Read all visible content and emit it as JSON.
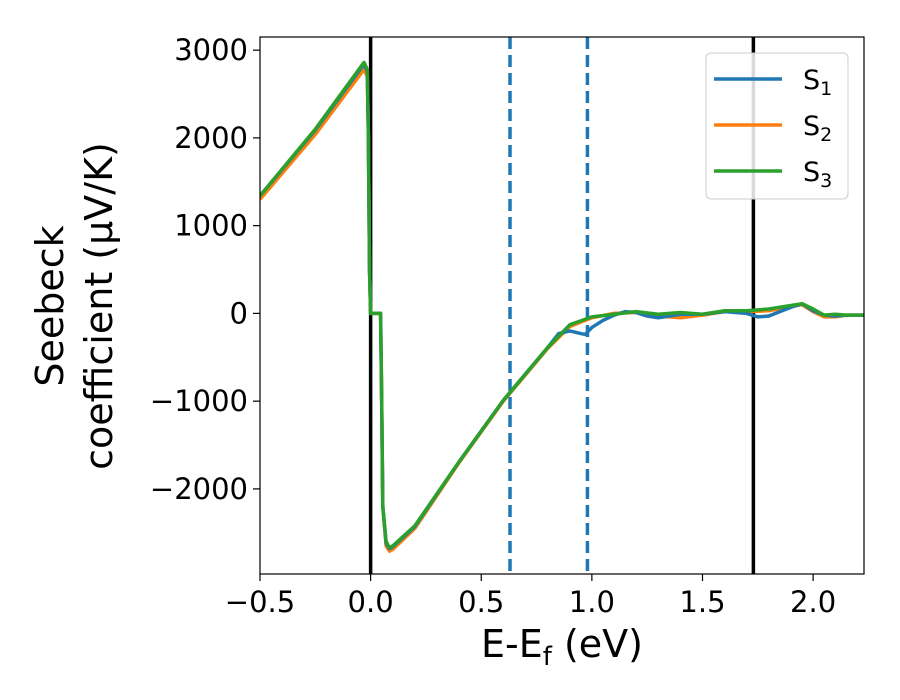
{
  "chart_data": {
    "type": "line",
    "xlabel": {
      "main": "E-E",
      "sub": "f",
      "unit": " (eV)"
    },
    "ylabel": {
      "line1": "Seebeck",
      "line2": "coefficient  (μV/K)"
    },
    "xlim": [
      -0.5,
      2.23
    ],
    "ylim": [
      -2970,
      3150
    ],
    "xticks": [
      -0.5,
      0.0,
      0.5,
      1.0,
      1.5,
      2.0
    ],
    "xtick_labels": [
      "−0.5",
      "0.0",
      "0.5",
      "1.0",
      "1.5",
      "2.0"
    ],
    "yticks": [
      -2000,
      -1000,
      0,
      1000,
      2000,
      3000
    ],
    "ytick_labels": [
      "−2000",
      "−1000",
      "0",
      "1000",
      "2000",
      "3000"
    ],
    "grid": false,
    "legend_position": "top-right",
    "colors": {
      "s1": "#1f77b4",
      "s2": "#ff7f0e",
      "s3": "#2ca02c",
      "vline_solid": "#000000",
      "vline_dashed": "#1f77b4"
    },
    "vlines_solid": [
      0.0,
      1.73
    ],
    "vlines_dashed": [
      0.63,
      0.98
    ],
    "series": [
      {
        "key": "s2",
        "name_main": "S",
        "name_sub": "2",
        "points": [
          [
            -0.5,
            1300
          ],
          [
            -0.25,
            2040
          ],
          [
            -0.03,
            2780
          ],
          [
            -0.015,
            2700
          ],
          [
            -0.01,
            2000
          ],
          [
            -0.005,
            500
          ],
          [
            0.0,
            0
          ],
          [
            0.045,
            0
          ],
          [
            0.05,
            -1000
          ],
          [
            0.055,
            -2200
          ],
          [
            0.07,
            -2650
          ],
          [
            0.085,
            -2710
          ],
          [
            0.1,
            -2690
          ],
          [
            0.2,
            -2450
          ],
          [
            0.4,
            -1700
          ],
          [
            0.6,
            -1000
          ],
          [
            0.8,
            -400
          ],
          [
            0.9,
            -150
          ],
          [
            1.0,
            -50
          ],
          [
            1.1,
            0
          ],
          [
            1.2,
            10
          ],
          [
            1.3,
            -30
          ],
          [
            1.4,
            -50
          ],
          [
            1.5,
            -20
          ],
          [
            1.6,
            20
          ],
          [
            1.7,
            20
          ],
          [
            1.8,
            30
          ],
          [
            1.9,
            80
          ],
          [
            1.95,
            100
          ],
          [
            2.0,
            20
          ],
          [
            2.05,
            -40
          ],
          [
            2.1,
            -40
          ],
          [
            2.15,
            -20
          ],
          [
            2.23,
            -20
          ]
        ]
      },
      {
        "key": "s1",
        "name_main": "S",
        "name_sub": "1",
        "points": [
          [
            -0.5,
            1340
          ],
          [
            -0.25,
            2090
          ],
          [
            -0.03,
            2840
          ],
          [
            -0.015,
            2760
          ],
          [
            -0.01,
            2000
          ],
          [
            -0.005,
            500
          ],
          [
            0.0,
            0
          ],
          [
            0.045,
            0
          ],
          [
            0.05,
            -1000
          ],
          [
            0.055,
            -2200
          ],
          [
            0.07,
            -2620
          ],
          [
            0.085,
            -2680
          ],
          [
            0.1,
            -2660
          ],
          [
            0.2,
            -2430
          ],
          [
            0.4,
            -1690
          ],
          [
            0.6,
            -990
          ],
          [
            0.8,
            -390
          ],
          [
            0.85,
            -230
          ],
          [
            0.9,
            -200
          ],
          [
            0.95,
            -230
          ],
          [
            0.97,
            -240
          ],
          [
            1.0,
            -160
          ],
          [
            1.05,
            -80
          ],
          [
            1.1,
            -20
          ],
          [
            1.15,
            20
          ],
          [
            1.2,
            10
          ],
          [
            1.25,
            -30
          ],
          [
            1.3,
            -50
          ],
          [
            1.35,
            -30
          ],
          [
            1.4,
            -10
          ],
          [
            1.5,
            -10
          ],
          [
            1.6,
            20
          ],
          [
            1.7,
            0
          ],
          [
            1.75,
            -40
          ],
          [
            1.8,
            -30
          ],
          [
            1.85,
            20
          ],
          [
            1.9,
            70
          ],
          [
            1.95,
            110
          ],
          [
            2.0,
            30
          ],
          [
            2.05,
            -20
          ],
          [
            2.1,
            -30
          ],
          [
            2.15,
            -20
          ],
          [
            2.23,
            -20
          ]
        ]
      },
      {
        "key": "s3",
        "name_main": "S",
        "name_sub": "3",
        "points": [
          [
            -0.5,
            1340
          ],
          [
            -0.25,
            2100
          ],
          [
            -0.03,
            2860
          ],
          [
            -0.015,
            2780
          ],
          [
            -0.01,
            2000
          ],
          [
            -0.005,
            500
          ],
          [
            0.0,
            0
          ],
          [
            0.045,
            0
          ],
          [
            0.05,
            -1000
          ],
          [
            0.055,
            -2200
          ],
          [
            0.07,
            -2600
          ],
          [
            0.085,
            -2670
          ],
          [
            0.1,
            -2650
          ],
          [
            0.2,
            -2420
          ],
          [
            0.4,
            -1690
          ],
          [
            0.6,
            -990
          ],
          [
            0.8,
            -390
          ],
          [
            0.9,
            -130
          ],
          [
            1.0,
            -40
          ],
          [
            1.1,
            -10
          ],
          [
            1.2,
            20
          ],
          [
            1.3,
            -10
          ],
          [
            1.4,
            10
          ],
          [
            1.5,
            -10
          ],
          [
            1.6,
            30
          ],
          [
            1.7,
            30
          ],
          [
            1.8,
            50
          ],
          [
            1.9,
            90
          ],
          [
            1.95,
            110
          ],
          [
            2.0,
            50
          ],
          [
            2.05,
            -20
          ],
          [
            2.1,
            -10
          ],
          [
            2.15,
            -20
          ],
          [
            2.23,
            -20
          ]
        ]
      }
    ]
  }
}
